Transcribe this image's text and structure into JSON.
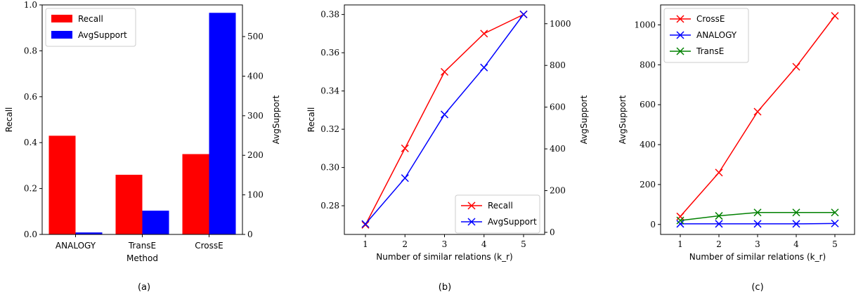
{
  "chart_data": [
    {
      "type": "bar",
      "panel_label": "(a)",
      "xlabel": "Method",
      "ylabel": "Recall",
      "y2label": "AvgSupport",
      "categories": [
        "ANALOGY",
        "TransE",
        "CrossE"
      ],
      "ylim": [
        0,
        1.0
      ],
      "y2lim": [
        0,
        580
      ],
      "yticks": [
        "0.0",
        "0.2",
        "0.4",
        "0.6",
        "0.8",
        "1.0"
      ],
      "y2ticks": [
        "0",
        "100",
        "200",
        "300",
        "400",
        "500"
      ],
      "series": [
        {
          "name": "Recall",
          "axis": "left",
          "color": "#ff0000",
          "values": [
            0.43,
            0.26,
            0.35
          ]
        },
        {
          "name": "AvgSupport",
          "axis": "right",
          "color": "#0000ff",
          "values": [
            5,
            60,
            560
          ]
        }
      ],
      "legend": "top-left"
    },
    {
      "type": "line",
      "panel_label": "(b)",
      "xlabel": "Number of similar relations (k_r)",
      "ylabel": "Recall",
      "y2label": "AvgSupport",
      "x": [
        1,
        2,
        3,
        4,
        5
      ],
      "xticks": [
        "1",
        "2",
        "3",
        "4",
        "5"
      ],
      "ylim": [
        0.265,
        0.385
      ],
      "y2lim": [
        -10,
        1090
      ],
      "yticks": [
        "0.28",
        "0.30",
        "0.32",
        "0.34",
        "0.36",
        "0.38"
      ],
      "y2ticks": [
        "0",
        "200",
        "400",
        "600",
        "800",
        "1000"
      ],
      "series": [
        {
          "name": "Recall",
          "axis": "left",
          "color": "#ff0000",
          "marker": "x",
          "values": [
            0.27,
            0.31,
            0.35,
            0.37,
            0.38
          ]
        },
        {
          "name": "AvgSupport",
          "axis": "right",
          "color": "#0000ff",
          "marker": "x",
          "values": [
            40,
            260,
            565,
            790,
            1045
          ]
        }
      ],
      "legend": "bottom-right"
    },
    {
      "type": "line",
      "panel_label": "(c)",
      "xlabel": "Number of similar relations (k_r)",
      "ylabel": "AvgSupport",
      "x": [
        1,
        2,
        3,
        4,
        5
      ],
      "xticks": [
        "1",
        "2",
        "3",
        "4",
        "5"
      ],
      "ylim": [
        -50,
        1100
      ],
      "yticks": [
        "0",
        "200",
        "400",
        "600",
        "800",
        "1000"
      ],
      "series": [
        {
          "name": "CrossE",
          "color": "#ff0000",
          "marker": "x",
          "values": [
            40,
            260,
            565,
            790,
            1045
          ]
        },
        {
          "name": "ANALOGY",
          "color": "#0000ff",
          "marker": "x",
          "values": [
            3,
            3,
            3,
            3,
            5
          ]
        },
        {
          "name": "TransE",
          "color": "#008000",
          "marker": "x",
          "values": [
            20,
            43,
            60,
            60,
            60
          ]
        }
      ],
      "legend": "top-left"
    }
  ]
}
